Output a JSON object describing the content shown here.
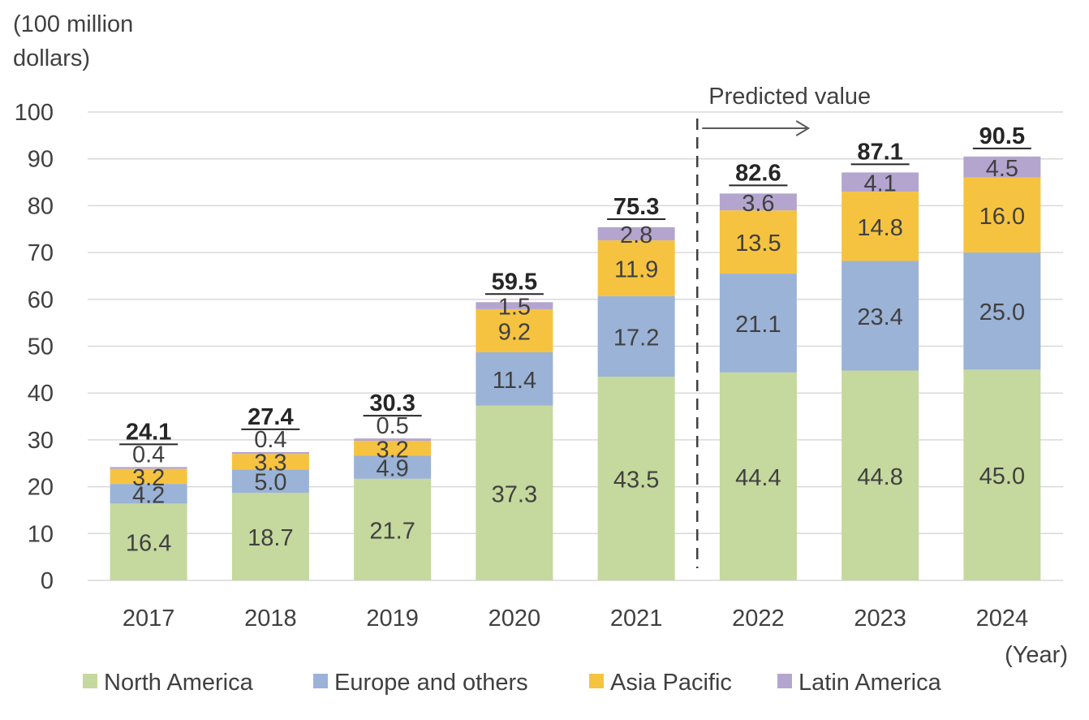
{
  "chart_data": {
    "type": "bar",
    "stacked": true,
    "y_unit_label": "(100 million dollars)",
    "y_unit_lines": [
      "(100 million",
      "dollars)"
    ],
    "x_unit_label": "(Year)",
    "predicted_label": "Predicted value",
    "ylim": [
      0,
      100
    ],
    "yticks": [
      0,
      10,
      20,
      30,
      40,
      50,
      60,
      70,
      80,
      90,
      100
    ],
    "grid": true,
    "legend_position": "bottom",
    "predicted_from": "2022",
    "categories": [
      "2017",
      "2018",
      "2019",
      "2020",
      "2021",
      "2022",
      "2023",
      "2024"
    ],
    "series": [
      {
        "name": "North America",
        "color": "#c5d89e",
        "values": [
          16.4,
          18.7,
          21.7,
          37.3,
          43.5,
          44.4,
          44.8,
          45.0
        ],
        "labels": [
          "16.4",
          "18.7",
          "21.7",
          "37.3",
          "43.5",
          "44.4",
          "44.8",
          "45.0"
        ]
      },
      {
        "name": "Europe and others",
        "color": "#9bb3d6",
        "values": [
          4.2,
          5.0,
          4.9,
          11.4,
          17.2,
          21.1,
          23.4,
          25.0
        ],
        "labels": [
          "4.2",
          "5.0",
          "4.9",
          "11.4",
          "17.2",
          "21.1",
          "23.4",
          "25.0"
        ]
      },
      {
        "name": "Asia Pacific",
        "color": "#f6c341",
        "values": [
          3.2,
          3.3,
          3.2,
          9.2,
          11.9,
          13.5,
          14.8,
          16.0
        ],
        "labels": [
          "3.2",
          "3.3",
          "3.2",
          "9.2",
          "11.9",
          "13.5",
          "14.8",
          "16.0"
        ]
      },
      {
        "name": "Latin America",
        "color": "#b4a5cf",
        "values": [
          0.4,
          0.4,
          0.5,
          1.5,
          2.8,
          3.6,
          4.1,
          4.5
        ],
        "labels": [
          "0.4",
          "0.4",
          "0.5",
          "1.5",
          "2.8",
          "3.6",
          "4.1",
          "4.5"
        ]
      }
    ],
    "totals": [
      "24.1",
      "27.4",
      "30.3",
      "59.5",
      "75.3",
      "82.6",
      "87.1",
      "90.5"
    ]
  }
}
